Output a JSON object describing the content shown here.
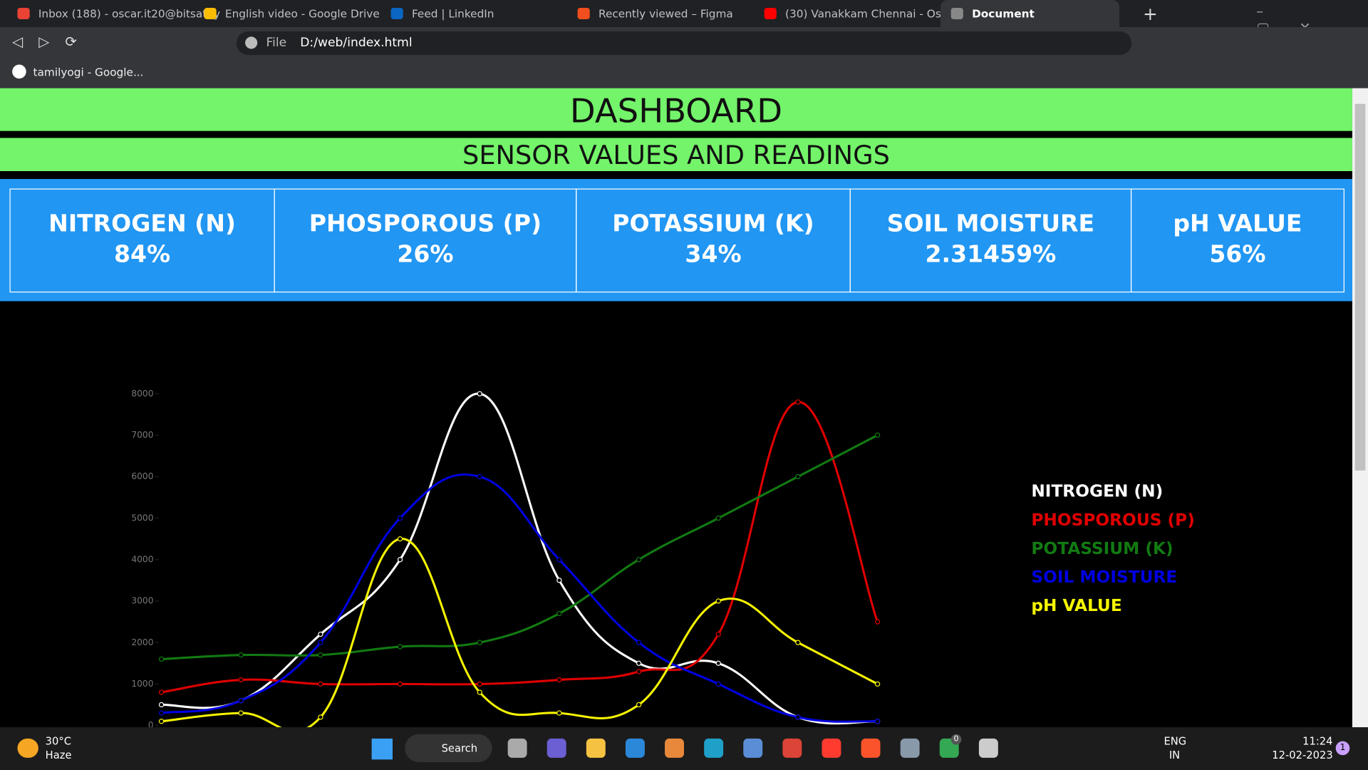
{
  "browser": {
    "tabs": [
      "Inbox (188) - oscar.it20@bitsathy",
      "English video - Google Drive",
      "Feed | LinkedIn",
      "Recently viewed – Figma",
      "(30) Vanakkam Chennai - Os",
      "Document"
    ],
    "address_prefix": "File",
    "url": "D:/web/index.html",
    "bookmarks": [
      "tamilyogi - Google..."
    ]
  },
  "header": {
    "title": "DASHBOARD",
    "subtitle": "SENSOR VALUES AND READINGS"
  },
  "cards": [
    {
      "label": "NITROGEN (N)",
      "value": "84%"
    },
    {
      "label": "PHOSPOROUS (P)",
      "value": "26%"
    },
    {
      "label": "POTASSIUM (K)",
      "value": "34%"
    },
    {
      "label": "SOIL MOISTURE",
      "value": "2.31459%"
    },
    {
      "label": "pH VALUE",
      "value": "56%"
    }
  ],
  "chart_data": {
    "type": "line",
    "categories": [
      null,
      null,
      null,
      null,
      null,
      null,
      null,
      null,
      null,
      null
    ],
    "series": [
      {
        "name": "NITROGEN (N)",
        "color": "#ffffff",
        "values": [
          500,
          600,
          2200,
          4000,
          8000,
          3500,
          1500,
          1500,
          200,
          100
        ]
      },
      {
        "name": "PHOSPOROUS (P)",
        "color": "#e00000",
        "values": [
          800,
          1100,
          1000,
          1000,
          1000,
          1100,
          1300,
          2200,
          7800,
          2500
        ]
      },
      {
        "name": "POTASSIUM (K)",
        "color": "#127a12",
        "values": [
          1600,
          1700,
          1700,
          1900,
          2000,
          2700,
          4000,
          5000,
          6000,
          7000
        ]
      },
      {
        "name": "SOIL MOISTURE",
        "color": "#0000e0",
        "values": [
          300,
          600,
          2000,
          5000,
          6000,
          4000,
          2000,
          1000,
          200,
          100
        ]
      },
      {
        "name": "pH VALUE",
        "color": "#f5f500",
        "values": [
          100,
          300,
          200,
          4500,
          800,
          300,
          500,
          3000,
          2000,
          1000
        ]
      }
    ],
    "ylim": [
      0,
      8000
    ],
    "yticks": [
      0,
      1000,
      2000,
      3000,
      4000,
      5000,
      6000,
      7000,
      8000
    ],
    "legend": "right"
  },
  "taskbar": {
    "weather_temp": "30°C",
    "weather_text": "Haze",
    "search": "Search",
    "lang": "ENG",
    "region": "IN",
    "time": "11:24",
    "date": "12-02-2023",
    "notifications": "1",
    "chrome_badge": "0"
  }
}
